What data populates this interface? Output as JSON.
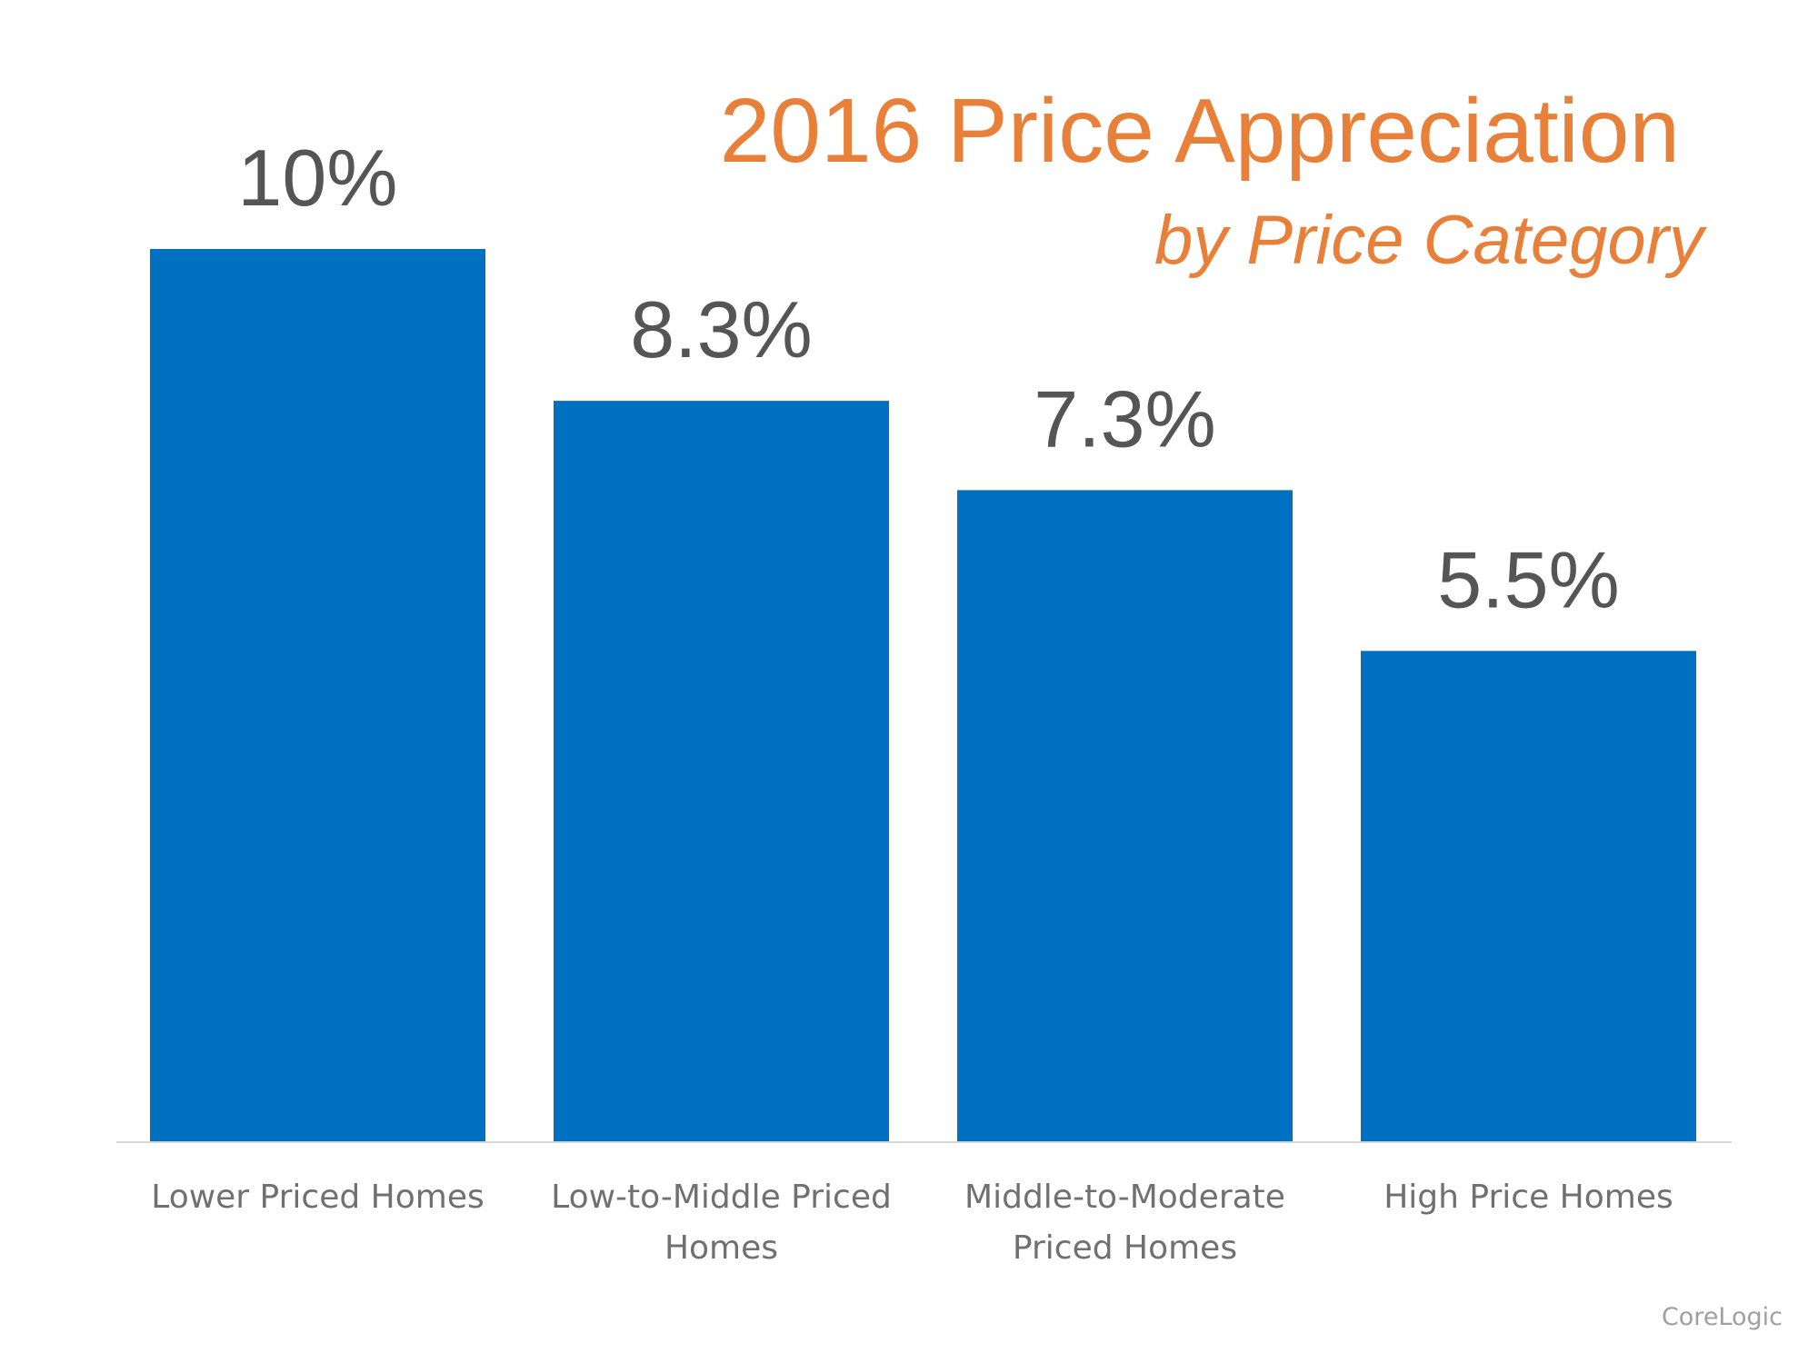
{
  "chart_data": {
    "type": "bar",
    "title": "2016 Price Appreciation",
    "subtitle": "by Price Category",
    "categories": [
      [
        "Lower Priced Homes"
      ],
      [
        "Low-to-Middle Priced",
        "Homes"
      ],
      [
        "Middle-to-Moderate",
        "Priced Homes"
      ],
      [
        "High Price Homes"
      ]
    ],
    "values": [
      10,
      8.3,
      7.3,
      5.5
    ],
    "data_labels": [
      "10%",
      "8.3%",
      "7.3%",
      "5.5%"
    ],
    "unit": "%",
    "ylim": [
      0,
      10
    ],
    "grid": false,
    "legend": "none",
    "source": "CoreLogic",
    "colors": {
      "bar": "#0070C0",
      "title": "#E8803A",
      "labels": "#555555",
      "axis": "#D9D9D9"
    }
  }
}
